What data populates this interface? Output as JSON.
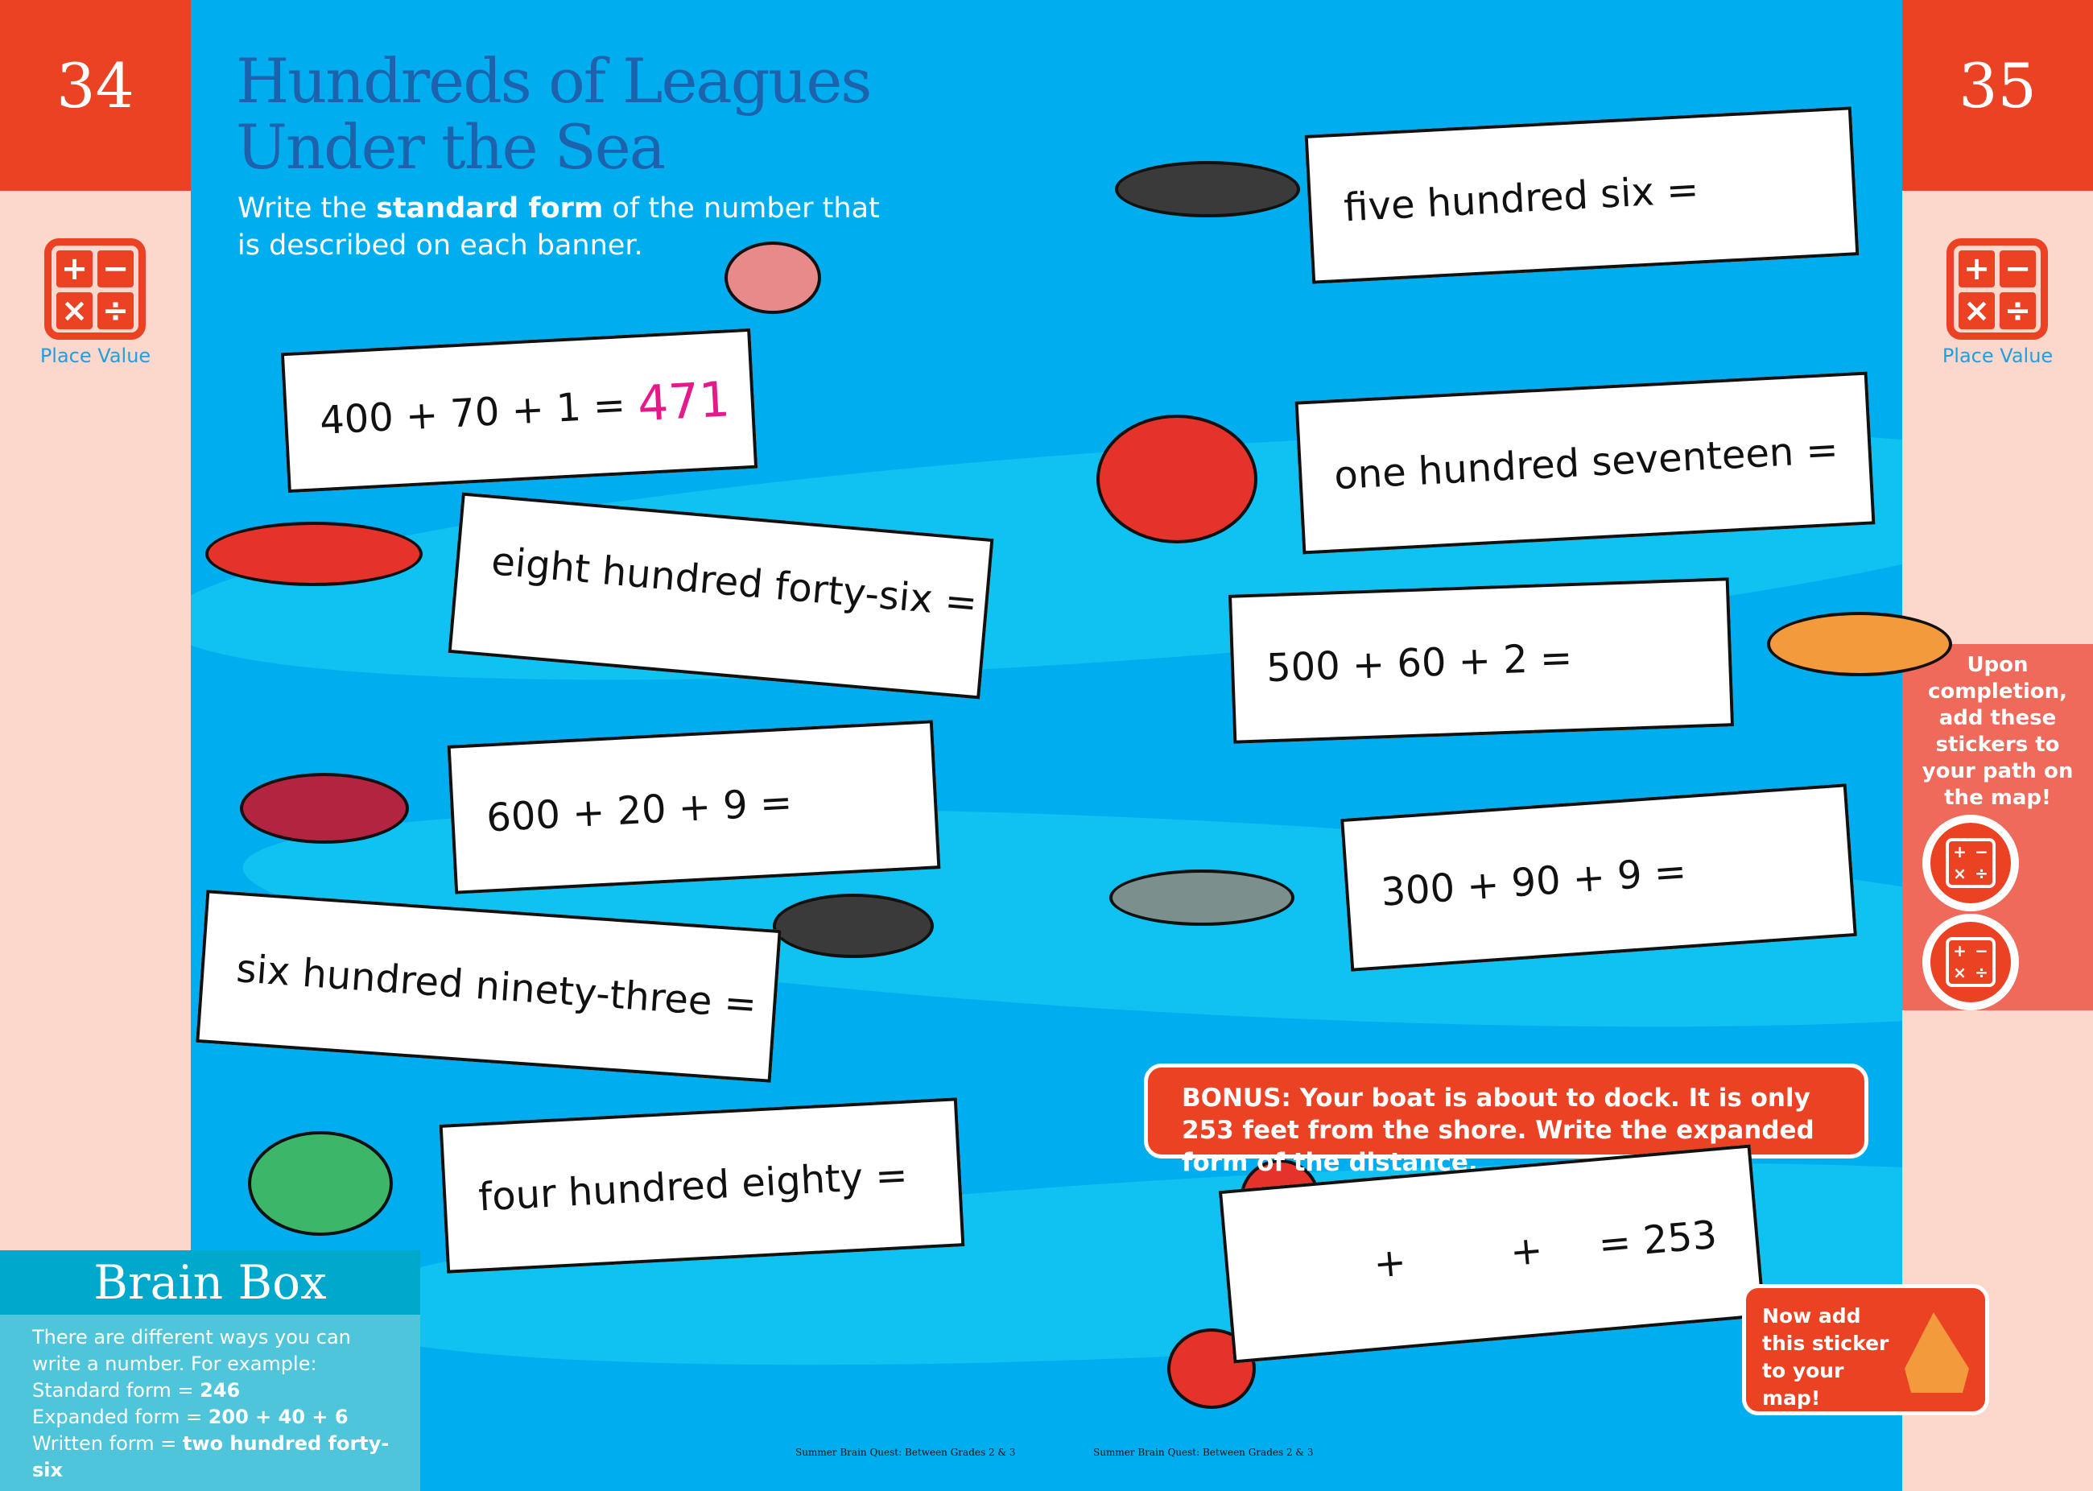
{
  "left_page": {
    "number": "34",
    "category": "Place Value"
  },
  "right_page": {
    "number": "35",
    "category": "Place Value"
  },
  "title_line1": "Hundreds of Leagues",
  "title_line2": "Under the Sea",
  "instructions": {
    "pre": "Write the ",
    "bold": "standard form",
    "post": " of the number that is described on each banner."
  },
  "banners": [
    {
      "text": "400 + 70 + 1 =",
      "answer": "471"
    },
    {
      "text": "eight hundred forty-six ="
    },
    {
      "text": "600 + 20 + 9 ="
    },
    {
      "text": "six hundred ninety-three ="
    },
    {
      "text": "four hundred eighty ="
    },
    {
      "text": "five hundred six ="
    },
    {
      "text": "one hundred seventeen ="
    },
    {
      "text": "500 + 60 + 2 ="
    },
    {
      "text": "300 + 90 + 9 ="
    }
  ],
  "bonus": {
    "text": "BONUS: Your boat is about to dock. It is only 253 feet from the shore. Write the expanded form of the distance.",
    "plus1": "+",
    "plus2": "+",
    "result": "= 253"
  },
  "sticker_panel": {
    "text": "Upon completion, add these stickers to your path on the map!"
  },
  "map_sticker": {
    "text": "Now add this sticker to your map!"
  },
  "brain_box": {
    "title": "Brain Box",
    "intro": "There are different ways you can write a number. For example:",
    "lines": [
      {
        "label": "Standard form = ",
        "value": "246"
      },
      {
        "label": "Expanded form = ",
        "value": "200 + 40 + 6"
      },
      {
        "label": "Written form = ",
        "value": "two hundred forty-six"
      }
    ]
  },
  "footer": {
    "left": "Summer Brain Quest: Between Grades 2 & 3",
    "right": "Summer Brain Quest: Between Grades 2 & 3"
  },
  "colors": {
    "ocean": "#00aeef",
    "accent_red": "#ea4223",
    "title_blue": "#1d62ad",
    "answer_pink": "#e6198a",
    "brain_box": "#4fc5dc"
  }
}
